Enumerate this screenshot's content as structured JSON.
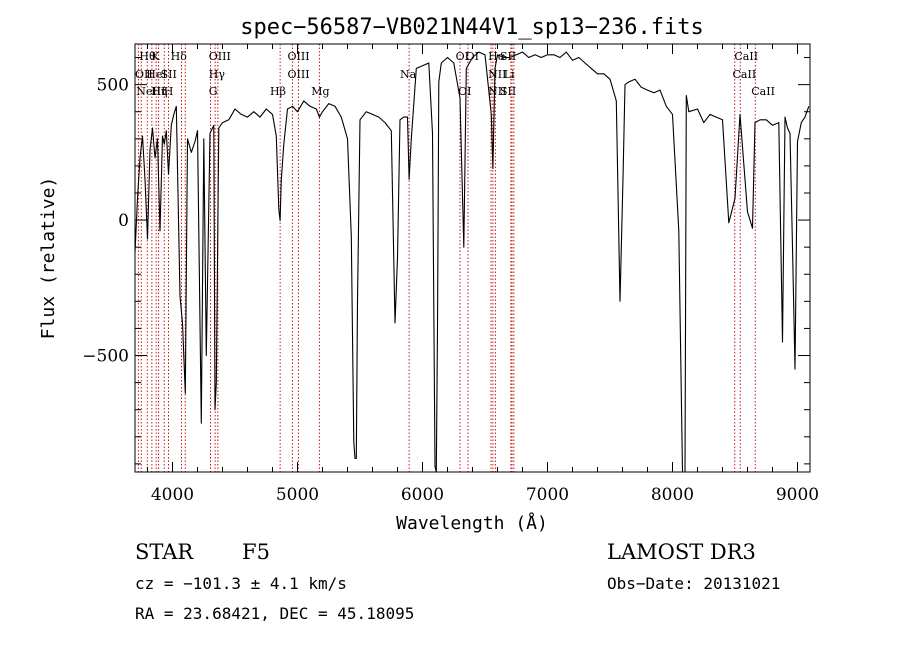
{
  "chart_data": {
    "type": "line",
    "title": "spec−56587−VB021N44V1_sp13−236.fits",
    "xlabel": "Wavelength (Å)",
    "ylabel": "Flux (relative)",
    "xlim": [
      3700,
      9100
    ],
    "ylim": [
      -930,
      650
    ],
    "x_ticks": [
      4000,
      5000,
      6000,
      7000,
      8000,
      9000
    ],
    "x_tick_labels": [
      "4000",
      "5000",
      "6000",
      "7000",
      "8000",
      "9000"
    ],
    "y_ticks": [
      -500,
      0,
      500
    ],
    "y_tick_labels": [
      "−500",
      "0",
      "500"
    ],
    "series": [
      {
        "name": "spectrum",
        "x": [
          3700,
          3720,
          3740,
          3760,
          3780,
          3800,
          3820,
          3840,
          3860,
          3880,
          3900,
          3920,
          3934,
          3950,
          3968,
          3990,
          4010,
          4030,
          4060,
          4080,
          4102,
          4120,
          4150,
          4180,
          4200,
          4230,
          4250,
          4270,
          4300,
          4330,
          4340,
          4350,
          4370,
          4400,
          4450,
          4500,
          4550,
          4600,
          4650,
          4700,
          4750,
          4800,
          4830,
          4850,
          4861,
          4870,
          4890,
          4920,
          4960,
          5000,
          5050,
          5100,
          5150,
          5175,
          5200,
          5250,
          5300,
          5350,
          5400,
          5430,
          5450,
          5460,
          5470,
          5480,
          5500,
          5550,
          5600,
          5650,
          5700,
          5750,
          5780,
          5800,
          5820,
          5850,
          5880,
          5893,
          5910,
          5950,
          6000,
          6050,
          6080,
          6100,
          6110,
          6120,
          6130,
          6150,
          6200,
          6250,
          6300,
          6330,
          6350,
          6400,
          6450,
          6500,
          6550,
          6563,
          6580,
          6600,
          6650,
          6700,
          6750,
          6800,
          6850,
          6900,
          6950,
          7000,
          7050,
          7100,
          7150,
          7200,
          7250,
          7300,
          7350,
          7400,
          7450,
          7500,
          7550,
          7580,
          7605,
          7620,
          7650,
          7700,
          7750,
          7800,
          7850,
          7900,
          7950,
          8000,
          8050,
          8080,
          8100,
          8110,
          8130,
          8200,
          8250,
          8300,
          8350,
          8400,
          8450,
          8500,
          8540,
          8600,
          8640,
          8660,
          8700,
          8750,
          8800,
          8850,
          8880,
          8900,
          8920,
          8940,
          8960,
          8980,
          9000,
          9030,
          9060,
          9090
        ],
        "values": [
          -120,
          80,
          230,
          310,
          150,
          -70,
          260,
          340,
          230,
          300,
          -40,
          310,
          280,
          330,
          170,
          350,
          390,
          420,
          -280,
          -380,
          -640,
          300,
          250,
          290,
          330,
          -750,
          300,
          -500,
          320,
          350,
          -700,
          -600,
          340,
          360,
          370,
          410,
          390,
          380,
          400,
          380,
          410,
          390,
          310,
          40,
          -2,
          150,
          280,
          410,
          420,
          400,
          440,
          420,
          410,
          380,
          400,
          430,
          420,
          380,
          300,
          -60,
          -820,
          -880,
          -880,
          -300,
          370,
          400,
          390,
          380,
          360,
          330,
          -380,
          -140,
          370,
          380,
          380,
          150,
          300,
          560,
          570,
          580,
          320,
          -910,
          -930,
          -400,
          510,
          580,
          600,
          580,
          450,
          -100,
          560,
          600,
          620,
          610,
          390,
          190,
          560,
          610,
          600,
          600,
          610,
          620,
          600,
          610,
          600,
          610,
          610,
          600,
          620,
          590,
          600,
          580,
          560,
          540,
          540,
          520,
          440,
          -300,
          170,
          500,
          510,
          520,
          490,
          480,
          470,
          480,
          420,
          390,
          -40,
          -960,
          -960,
          460,
          400,
          410,
          360,
          390,
          380,
          370,
          -10,
          80,
          390,
          30,
          -30,
          360,
          370,
          370,
          350,
          360,
          -450,
          380,
          340,
          320,
          -100,
          -550,
          290,
          360,
          380,
          420
        ]
      }
    ],
    "lines": [
      {
        "x": 3727,
        "labels": [
          "OII"
        ]
      },
      {
        "x": 3750,
        "labels": [
          "Hθ"
        ]
      },
      {
        "x": 3798,
        "labels": [
          ""
        ]
      },
      {
        "x": 3835,
        "labels": [
          "Hη"
        ]
      },
      {
        "x": 3869,
        "labels": [
          "NeIII"
        ]
      },
      {
        "x": 3889,
        "labels": [
          "HeI"
        ]
      },
      {
        "x": 3934,
        "labels": [
          "K"
        ]
      },
      {
        "x": 3968,
        "labels": [
          "H"
        ]
      },
      {
        "x": 4072,
        "labels": [
          "SII"
        ]
      },
      {
        "x": 4102,
        "labels": [
          "Hδ"
        ]
      },
      {
        "x": 4304,
        "labels": [
          "G"
        ]
      },
      {
        "x": 4341,
        "labels": [
          "Hγ"
        ]
      },
      {
        "x": 4363,
        "labels": [
          "OIII"
        ]
      },
      {
        "x": 4861,
        "labels": [
          "Hβ"
        ]
      },
      {
        "x": 4959,
        "labels": [
          "OIII"
        ]
      },
      {
        "x": 5007,
        "labels": [
          "OIII"
        ]
      },
      {
        "x": 5175,
        "labels": [
          "Mg"
        ]
      },
      {
        "x": 5893,
        "labels": [
          "Na"
        ]
      },
      {
        "x": 6300,
        "labels": [
          "OI"
        ]
      },
      {
        "x": 6364,
        "labels": [
          ""
        ]
      },
      {
        "x": 6548,
        "labels": [
          "NII"
        ]
      },
      {
        "x": 6563,
        "labels": [
          "Hα"
        ]
      },
      {
        "x": 6583,
        "labels": [
          "NII"
        ]
      },
      {
        "x": 6707,
        "labels": [
          "Li"
        ]
      },
      {
        "x": 6716,
        "labels": [
          "SII"
        ]
      },
      {
        "x": 6731,
        "labels": [
          "SII"
        ]
      },
      {
        "x": 8498,
        "labels": [
          "CaII"
        ]
      },
      {
        "x": 8542,
        "labels": [
          "CaII"
        ]
      },
      {
        "x": 8662,
        "labels": [
          "CaII"
        ]
      }
    ],
    "line_label_rows": [
      {
        "x": 3735,
        "row": 0,
        "text": "Hθ"
      },
      {
        "x": 3830,
        "row": 0,
        "text": "K"
      },
      {
        "x": 3985,
        "row": 0,
        "text": "Hδ"
      },
      {
        "x": 4290,
        "row": 0,
        "text": "OIII"
      },
      {
        "x": 4920,
        "row": 0,
        "text": "OIII"
      },
      {
        "x": 6265,
        "row": 0,
        "text": "OI"
      },
      {
        "x": 6345,
        "row": 0,
        "text": "OI"
      },
      {
        "x": 6525,
        "row": 0,
        "text": "Hα"
      },
      {
        "x": 6620,
        "row": 0,
        "text": "SII"
      },
      {
        "x": 8495,
        "row": 0,
        "text": "CaII"
      },
      {
        "x": 3700,
        "row": 1,
        "text": "OII"
      },
      {
        "x": 3790,
        "row": 1,
        "text": "HeI"
      },
      {
        "x": 3905,
        "row": 1,
        "text": "SII"
      },
      {
        "x": 4290,
        "row": 1,
        "text": "Hγ"
      },
      {
        "x": 4920,
        "row": 1,
        "text": "OIII"
      },
      {
        "x": 5820,
        "row": 1,
        "text": "Na"
      },
      {
        "x": 6525,
        "row": 1,
        "text": "NII"
      },
      {
        "x": 6650,
        "row": 1,
        "text": "Li"
      },
      {
        "x": 8480,
        "row": 1,
        "text": "CaII"
      },
      {
        "x": 3710,
        "row": 2,
        "text": "NeIII"
      },
      {
        "x": 3830,
        "row": 2,
        "text": "Hη"
      },
      {
        "x": 3930,
        "row": 2,
        "text": "H"
      },
      {
        "x": 4290,
        "row": 2,
        "text": "G"
      },
      {
        "x": 4780,
        "row": 2,
        "text": "Hβ"
      },
      {
        "x": 5110,
        "row": 2,
        "text": "Mg"
      },
      {
        "x": 6285,
        "row": 2,
        "text": "OI"
      },
      {
        "x": 6525,
        "row": 2,
        "text": "NII"
      },
      {
        "x": 6620,
        "row": 2,
        "text": "SII"
      },
      {
        "x": 8630,
        "row": 2,
        "text": "CaII"
      }
    ]
  },
  "info": {
    "class": "STAR",
    "subclass": "F5",
    "survey": "LAMOST DR3",
    "cz": "cz = −101.3 ± 4.1 km/s",
    "obs_date": "Obs−Date: 20131021",
    "coords": "RA =  23.68421, DEC =  45.18095"
  },
  "colors": {
    "line_marker": "#c00000",
    "spectrum": "#000000"
  }
}
